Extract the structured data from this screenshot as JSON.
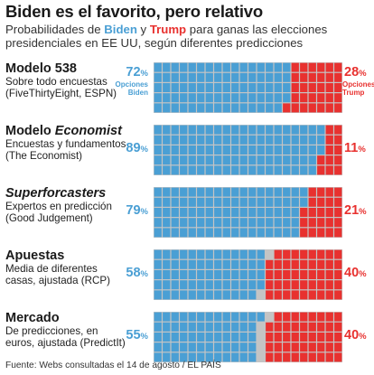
{
  "header": {
    "title": "Biden es el favorito, pero relativo",
    "subtitle_pre": "Probabilidades de ",
    "biden": "Biden",
    "subtitle_mid": " y ",
    "trump": "Trump",
    "subtitle_post": " para ganas las elecciones presidenciales en EE UU, según diferentes predicciones"
  },
  "colors": {
    "biden": "#4a9fd4",
    "trump": "#e8312f",
    "undecided": "#c4c4c4"
  },
  "chart_data": {
    "type": "waffle",
    "cells_per_chart": 100,
    "rows": [
      {
        "name": "Modelo 538",
        "name_italic": "",
        "desc": [
          "Sobre todo encuestas",
          "(FiveThirtyEight, ESPN)"
        ],
        "biden": 72,
        "trump": 28,
        "biden_label": [
          "Opciones",
          "Biden"
        ],
        "trump_label": [
          "Opciones",
          "Trump"
        ]
      },
      {
        "name": "Modelo ",
        "name_italic": "Economist",
        "desc": [
          "Encuestas y fundamentos",
          "(The Economist)"
        ],
        "biden": 89,
        "trump": 11
      },
      {
        "name": "",
        "name_italic": "Superforcasters",
        "desc": [
          "Expertos en predicción",
          "(Good Judgement)"
        ],
        "biden": 79,
        "trump": 21
      },
      {
        "name": "Apuestas",
        "name_italic": "",
        "desc": [
          "Media de diferentes",
          "casas, ajustada (RCP)"
        ],
        "biden": 58,
        "trump": 40
      },
      {
        "name": "Mercado",
        "name_italic": "",
        "desc": [
          "De predicciones, en",
          "euros, ajustada (PredictIt)"
        ],
        "biden": 55,
        "trump": 40
      }
    ]
  },
  "footer": {
    "source": "Fuente: Webs consultadas el 14 de agosto / EL PAÍS"
  }
}
